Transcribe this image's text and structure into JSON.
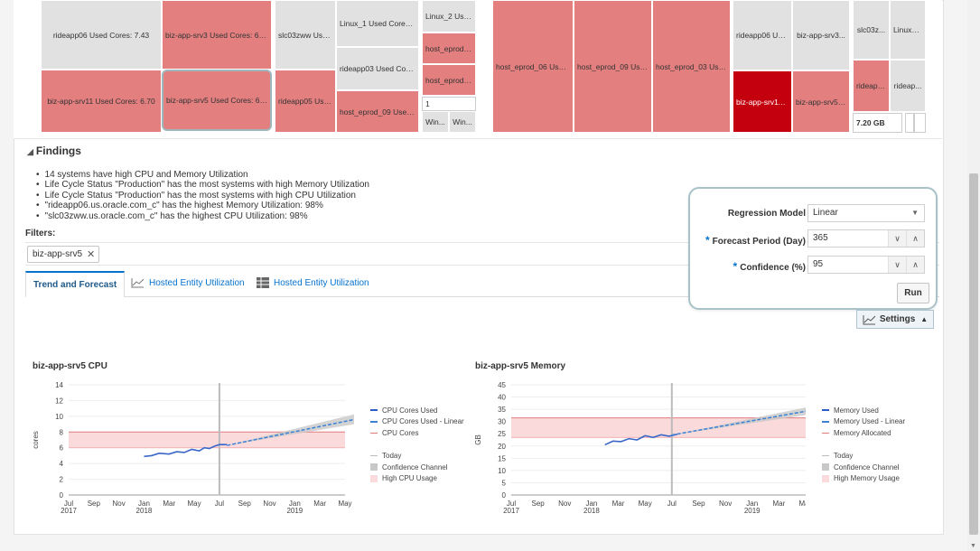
{
  "treemap": {
    "tiles": [
      {
        "label": "rideapp06 Used Cores: 7.43",
        "kind": "g"
      },
      {
        "label": "biz-app-srv3 Used Cores: 6.59",
        "kind": "r"
      },
      {
        "label": "biz-app-srv11 Used Cores: 6.70",
        "kind": "r"
      },
      {
        "label": "biz-app-srv5 Used Cores: 6.34",
        "kind": "r"
      },
      {
        "label": "slc03zww Used...",
        "kind": "g"
      },
      {
        "label": "rideapp05 Use...",
        "kind": "r"
      },
      {
        "label": "Linux_1 Used Cores: ...",
        "kind": "g"
      },
      {
        "label": "rideapp03 Used Core...",
        "kind": "g"
      },
      {
        "label": "host_eprod_09 Used ...",
        "kind": "r"
      },
      {
        "label": "Linux_2 Use...",
        "kind": "g"
      },
      {
        "label": "host_eprod_...",
        "kind": "r"
      },
      {
        "label": "host_eprod_...",
        "kind": "r"
      },
      {
        "label": "1",
        "kind": "w"
      },
      {
        "label": "Win...",
        "kind": "g"
      },
      {
        "label": "Win...",
        "kind": "g"
      },
      {
        "label": "host_eprod_06 Used...",
        "kind": "r"
      },
      {
        "label": "host_eprod_09 Use...",
        "kind": "r"
      },
      {
        "label": "host_eprod_03 Use...",
        "kind": "r"
      },
      {
        "label": "rideapp06 Used...",
        "kind": "g"
      },
      {
        "label": "biz-app-srv3...",
        "kind": "g"
      },
      {
        "label": "biz-app-srv11 ...",
        "kind": "dr"
      },
      {
        "label": "biz-app-srv5 ...",
        "kind": "r"
      },
      {
        "label": "slc03z...",
        "kind": "g"
      },
      {
        "label": "Linux_1...",
        "kind": "g"
      },
      {
        "label": "rideapp...",
        "kind": "r"
      },
      {
        "label": "rideap...",
        "kind": "g"
      },
      {
        "label": "7.20 GB",
        "kind": "w"
      }
    ]
  },
  "findings": {
    "title": "Findings",
    "items": [
      "14 systems have high CPU and Memory Utilization",
      "Life Cycle Status \"Production\" has the most systems with high Memory Utilization",
      "Life Cycle Status \"Production\" has the most systems with high CPU Utilization",
      "\"rideapp06.us.oracle.com_c\" has the highest Memory Utilization: 98%",
      "\"slc03zww.us.oracle.com_c\" has the highest CPU Utilization: 98%"
    ]
  },
  "filters": {
    "label": "Filters:",
    "chips": [
      "biz-app-srv5"
    ]
  },
  "tabs": [
    {
      "label": "Trend and Forecast",
      "icon": "none"
    },
    {
      "label": "Hosted Entity Utilization",
      "icon": "line-chart-icon"
    },
    {
      "label": "Hosted Entity Utilization",
      "icon": "table-icon"
    }
  ],
  "settings_panel": {
    "regression_label": "Regression Model",
    "regression_value": "Linear",
    "forecast_label": "Forecast Period (Day)",
    "forecast_value": "365",
    "confidence_label": "Confidence (%)",
    "confidence_value": "95",
    "run_label": "Run"
  },
  "settings_button": {
    "label": "Settings"
  },
  "chart_data": [
    {
      "type": "line",
      "title": "biz-app-srv5 CPU",
      "ylabel": "cores",
      "ylim": [
        0,
        14
      ],
      "yticks": [
        0,
        2,
        4,
        6,
        8,
        10,
        12,
        14
      ],
      "x_ticks": [
        "Jul\n2017",
        "Sep",
        "Nov",
        "Jan\n2018",
        "Mar",
        "May",
        "Jul",
        "Sep",
        "Nov",
        "Jan\n2019",
        "Mar",
        "May"
      ],
      "today": "Jul 2018",
      "band": {
        "name": "High CPU Usage",
        "from": 6,
        "to": 8
      },
      "cpu_cores": 8,
      "series": [
        {
          "name": "CPU Cores Used",
          "x": [
            3.0,
            3.3,
            3.6,
            4.0,
            4.3,
            4.6,
            4.9,
            5.2,
            5.4,
            5.6,
            5.8,
            6.0,
            6.3
          ],
          "values": [
            4.9,
            5.0,
            5.3,
            5.2,
            5.5,
            5.4,
            5.8,
            5.6,
            6.0,
            5.9,
            6.2,
            6.4,
            6.4
          ]
        },
        {
          "name": "CPU Cores Used - Linear",
          "x": [
            6.3,
            14.0
          ],
          "values": [
            6.3,
            11.3
          ]
        }
      ],
      "confidence": {
        "x": [
          6.3,
          14.0
        ],
        "lower": [
          6.3,
          10.4
        ],
        "upper": [
          6.3,
          12.3
        ]
      },
      "legend": [
        "CPU Cores Used",
        "CPU Cores Used - Linear",
        "CPU Cores",
        "Today",
        "Confidence Channel",
        "High CPU Usage"
      ]
    },
    {
      "type": "line",
      "title": "biz-app-srv5 Memory",
      "ylabel": "GB",
      "ylim": [
        0,
        45
      ],
      "yticks": [
        0,
        5,
        10,
        15,
        20,
        25,
        30,
        35,
        40,
        45
      ],
      "x_ticks": [
        "Jul\n2017",
        "Sep",
        "Nov",
        "Jan\n2018",
        "Mar",
        "May",
        "Jul",
        "Sep",
        "Nov",
        "Jan\n2019",
        "Mar",
        "May"
      ],
      "today": "Jul 2018",
      "band": {
        "name": "High Memory Usage",
        "from": 23.5,
        "to": 31.5
      },
      "memory_allocated": 31.5,
      "series": [
        {
          "name": "Memory Used",
          "x": [
            3.5,
            3.8,
            4.1,
            4.4,
            4.7,
            5.0,
            5.3,
            5.6,
            5.9,
            6.2
          ],
          "values": [
            20.5,
            22.0,
            21.8,
            23.0,
            22.5,
            24.2,
            23.5,
            24.6,
            24.0,
            24.8
          ]
        },
        {
          "name": "Memory Used - Linear",
          "x": [
            6.0,
            14.0
          ],
          "values": [
            24.5,
            40.0
          ]
        }
      ],
      "confidence": {
        "x": [
          6.0,
          14.0
        ],
        "lower": [
          24.5,
          37.5
        ],
        "upper": [
          24.5,
          42.5
        ]
      },
      "legend": [
        "Memory Used",
        "Memory Used - Linear",
        "Memory Allocated",
        "Today",
        "Confidence Channel",
        "High Memory Usage"
      ]
    }
  ]
}
